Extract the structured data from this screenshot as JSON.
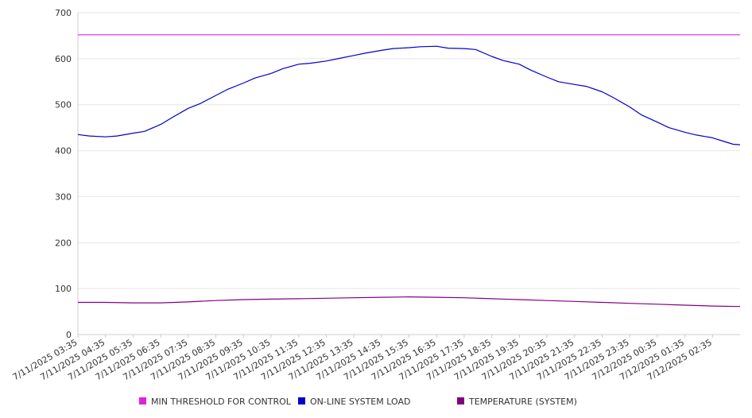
{
  "chart_data": {
    "type": "line",
    "title": "",
    "xlabel": "",
    "ylabel": "",
    "ylim": [
      0,
      700
    ],
    "y_ticks": [
      0,
      100,
      200,
      300,
      400,
      500,
      600,
      700
    ],
    "grid": "horizontal",
    "legend_position": "bottom",
    "x_start": "2025-07-11T03:35",
    "x_end": "2025-07-12T03:35",
    "x_tick_labels": [
      "7/11/2025 03:35",
      "7/11/2025 04:35",
      "7/11/2025 05:35",
      "7/11/2025 06:35",
      "7/11/2025 07:35",
      "7/11/2025 08:35",
      "7/11/2025 09:35",
      "7/11/2025 10:35",
      "7/11/2025 11:35",
      "7/11/2025 12:35",
      "7/11/2025 13:35",
      "7/11/2025 14:35",
      "7/11/2025 15:35",
      "7/11/2025 16:35",
      "7/11/2025 17:35",
      "7/11/2025 18:35",
      "7/11/2025 19:35",
      "7/11/2025 20:35",
      "7/11/2025 21:35",
      "7/11/2025 22:35",
      "7/11/2025 23:35",
      "7/12/2025 00:35",
      "7/12/2025 01:35",
      "7/12/2025 02:35"
    ],
    "series": [
      {
        "name": "MIN THRESHOLD FOR CONTROL",
        "color": "#e020e0",
        "points": [
          [
            "2025-07-11T03:35",
            652
          ],
          [
            "2025-07-12T03:35",
            652
          ]
        ]
      },
      {
        "name": "ON-LINE SYSTEM LOAD",
        "color": "#0000cc",
        "points": [
          [
            "2025-07-11T03:35",
            435
          ],
          [
            "2025-07-11T04:00",
            432
          ],
          [
            "2025-07-11T04:35",
            430
          ],
          [
            "2025-07-11T05:00",
            432
          ],
          [
            "2025-07-11T05:35",
            438
          ],
          [
            "2025-07-11T06:00",
            442
          ],
          [
            "2025-07-11T06:35",
            457
          ],
          [
            "2025-07-11T07:00",
            472
          ],
          [
            "2025-07-11T07:35",
            492
          ],
          [
            "2025-07-11T08:00",
            502
          ],
          [
            "2025-07-11T08:35",
            520
          ],
          [
            "2025-07-11T09:00",
            533
          ],
          [
            "2025-07-11T09:35",
            547
          ],
          [
            "2025-07-11T10:00",
            558
          ],
          [
            "2025-07-11T10:35",
            568
          ],
          [
            "2025-07-11T11:00",
            578
          ],
          [
            "2025-07-11T11:35",
            588
          ],
          [
            "2025-07-11T12:00",
            590
          ],
          [
            "2025-07-11T12:35",
            595
          ],
          [
            "2025-07-11T13:00",
            600
          ],
          [
            "2025-07-11T13:35",
            607
          ],
          [
            "2025-07-11T14:00",
            612
          ],
          [
            "2025-07-11T14:35",
            618
          ],
          [
            "2025-07-11T15:00",
            622
          ],
          [
            "2025-07-11T15:35",
            624
          ],
          [
            "2025-07-11T16:00",
            626
          ],
          [
            "2025-07-11T16:35",
            627
          ],
          [
            "2025-07-11T17:00",
            623
          ],
          [
            "2025-07-11T17:35",
            622
          ],
          [
            "2025-07-11T18:00",
            620
          ],
          [
            "2025-07-11T18:35",
            605
          ],
          [
            "2025-07-11T19:00",
            596
          ],
          [
            "2025-07-11T19:35",
            588
          ],
          [
            "2025-07-11T20:00",
            575
          ],
          [
            "2025-07-11T20:35",
            560
          ],
          [
            "2025-07-11T21:00",
            550
          ],
          [
            "2025-07-11T21:35",
            544
          ],
          [
            "2025-07-11T22:00",
            540
          ],
          [
            "2025-07-11T22:35",
            528
          ],
          [
            "2025-07-11T23:00",
            515
          ],
          [
            "2025-07-11T23:35",
            495
          ],
          [
            "2025-07-12T00:00",
            478
          ],
          [
            "2025-07-12T00:35",
            462
          ],
          [
            "2025-07-12T01:00",
            450
          ],
          [
            "2025-07-12T01:35",
            440
          ],
          [
            "2025-07-12T02:00",
            434
          ],
          [
            "2025-07-12T02:35",
            428
          ],
          [
            "2025-07-12T03:00",
            420
          ],
          [
            "2025-07-12T03:20",
            414
          ],
          [
            "2025-07-12T03:35",
            413
          ]
        ]
      },
      {
        "name": "TEMPERATURE (SYSTEM)",
        "color": "#800080",
        "points": [
          [
            "2025-07-11T03:35",
            70
          ],
          [
            "2025-07-11T04:35",
            70
          ],
          [
            "2025-07-11T05:35",
            69
          ],
          [
            "2025-07-11T06:35",
            69
          ],
          [
            "2025-07-11T07:35",
            71
          ],
          [
            "2025-07-11T08:35",
            74
          ],
          [
            "2025-07-11T09:35",
            76
          ],
          [
            "2025-07-11T10:35",
            77
          ],
          [
            "2025-07-11T11:35",
            78
          ],
          [
            "2025-07-11T12:35",
            79
          ],
          [
            "2025-07-11T13:35",
            80
          ],
          [
            "2025-07-11T14:35",
            81
          ],
          [
            "2025-07-11T15:35",
            82
          ],
          [
            "2025-07-11T16:35",
            81
          ],
          [
            "2025-07-11T17:35",
            80
          ],
          [
            "2025-07-11T18:35",
            78
          ],
          [
            "2025-07-11T19:35",
            76
          ],
          [
            "2025-07-11T20:35",
            74
          ],
          [
            "2025-07-11T21:35",
            72
          ],
          [
            "2025-07-11T22:35",
            70
          ],
          [
            "2025-07-11T23:35",
            68
          ],
          [
            "2025-07-12T00:35",
            66
          ],
          [
            "2025-07-12T01:35",
            64
          ],
          [
            "2025-07-12T02:35",
            62
          ],
          [
            "2025-07-12T03:35",
            61
          ]
        ]
      }
    ]
  }
}
